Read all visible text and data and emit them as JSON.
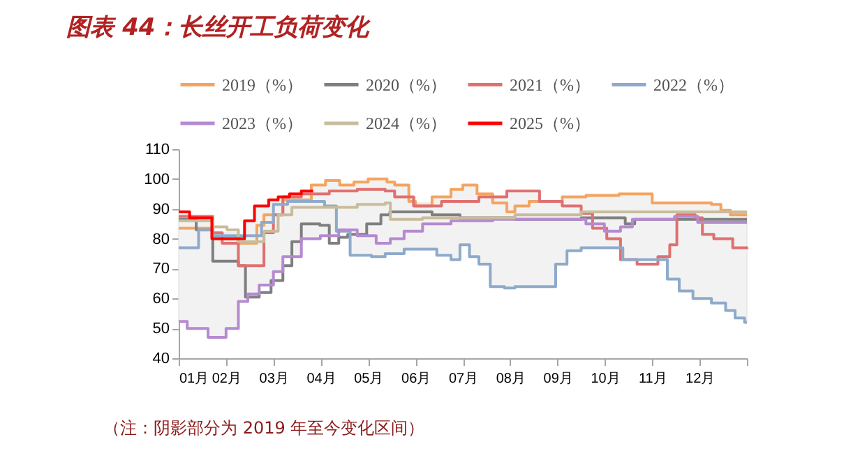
{
  "chart_data": {
    "type": "step",
    "title": "图表 44：长丝开工负荷变化",
    "annotations": [
      "（注：阴影部分为 2019 年至今变化区间）"
    ],
    "xlim": [
      1,
      13
    ],
    "xticks": [
      {
        "value": 1,
        "label": "01月"
      },
      {
        "value": 2,
        "label": "02月"
      },
      {
        "value": 3,
        "label": "03月"
      },
      {
        "value": 4,
        "label": "04月"
      },
      {
        "value": 5,
        "label": "05月"
      },
      {
        "value": 6,
        "label": "06月"
      },
      {
        "value": 7,
        "label": "07月"
      },
      {
        "value": 8,
        "label": "08月"
      },
      {
        "value": 9,
        "label": "09月"
      },
      {
        "value": 10,
        "label": "10月"
      },
      {
        "value": 11,
        "label": "11月"
      },
      {
        "value": 12,
        "label": "12月"
      },
      {
        "value": 13,
        "label": null
      }
    ],
    "ylim": [
      40,
      110
    ],
    "yticks": [
      40,
      50,
      60,
      70,
      80,
      90,
      100,
      110
    ],
    "grid": false,
    "legend": "top",
    "series": [
      {
        "type": "area",
        "color": "#f2f2f2",
        "x": [
          1,
          1.18,
          1.23,
          1.62,
          1.72,
          2.0,
          2.26,
          2.39,
          2.46,
          2.6,
          2.7,
          2.9,
          3.0,
          3.1,
          3.2,
          3.34,
          3.59,
          3.8,
          3.99,
          4.1,
          4.33,
          4.4,
          4.62,
          4.7,
          5.0,
          5.07,
          5.36,
          5.4,
          5.56,
          5.76,
          5.86,
          6.0,
          6.35,
          6.45,
          6.75,
          6.94,
          7.0,
          7.14,
          7.3,
          7.34,
          7.58,
          7.63,
          7.88,
          7.93,
          8.1,
          8.62,
          8.96,
          9.1,
          9.2,
          9.5,
          9.6,
          10.3,
          10.38,
          11.0,
          11.32,
          11.57,
          11.86,
          12.25,
          12.45,
          12.55,
          12.65,
          12.75,
          12.95,
          13
        ],
        "lower": [
          52.3,
          50,
          50,
          47,
          47,
          50,
          59,
          59,
          61.5,
          61.5,
          64.5,
          64.5,
          69,
          69,
          74,
          74,
          80,
          80,
          81,
          81,
          82.5,
          82.5,
          74.5,
          74.5,
          74.5,
          74,
          75,
          75,
          75,
          76.5,
          76.5,
          76.5,
          76.5,
          74.5,
          73,
          78,
          78,
          74,
          74,
          71.5,
          64,
          64,
          63.5,
          63.5,
          64,
          64,
          71.5,
          71.5,
          76,
          77,
          77,
          77,
          73,
          73,
          66.5,
          62.5,
          60,
          58.5,
          58.5,
          56,
          56,
          53.5,
          52,
          52
        ],
        "values": [
          null,
          null,
          null,
          null,
          null,
          null,
          null,
          null,
          null,
          null,
          null,
          null,
          null,
          null,
          null,
          null,
          null,
          null,
          null,
          null,
          null,
          null,
          null,
          null,
          null,
          null,
          null,
          null,
          null,
          null,
          null,
          null,
          null,
          null,
          null,
          null,
          null,
          null,
          null,
          null,
          null,
          null,
          null,
          null,
          null,
          null,
          null,
          null,
          null,
          null,
          null,
          null,
          null,
          null,
          null,
          null,
          null,
          null,
          null,
          null,
          null,
          null,
          null,
          null
        ],
        "upper": [
          89,
          89,
          87.5,
          87.5,
          82,
          82,
          81,
          86,
          86,
          91,
          91,
          93,
          93,
          94,
          94,
          95,
          96,
          98,
          98,
          99.5,
          99.5,
          98,
          98,
          99,
          100,
          100,
          99,
          99,
          98,
          98,
          94,
          92,
          94,
          94,
          96.5,
          96.5,
          98,
          98,
          95,
          95,
          95,
          94,
          94,
          96,
          96,
          92.5,
          92.5,
          94,
          94,
          94,
          95,
          95,
          95,
          92,
          92,
          92,
          92,
          91.5,
          89.5,
          89.5,
          89,
          89,
          89,
          89
        ]
      },
      {
        "name": "2019（%）",
        "color": "#f4a460",
        "x": [
          1,
          1.72,
          2.25,
          2.65,
          2.8,
          3.2,
          3.8,
          4.1,
          4.4,
          4.7,
          5.0,
          5.4,
          5.56,
          5.86,
          6.0,
          6.35,
          6.75,
          7.0,
          7.3,
          7.63,
          7.93,
          8.1,
          8.4,
          9.1,
          9.6,
          10.3,
          11.0,
          12.25,
          12.45,
          12.65,
          13
        ],
        "values": [
          83.5,
          80,
          78.5,
          84.5,
          88,
          93,
          98,
          99.5,
          98,
          99,
          100,
          99,
          98,
          92.5,
          91,
          94,
          96.5,
          98,
          95,
          92,
          89,
          91,
          92.5,
          94,
          94.5,
          95,
          92,
          91.5,
          89.5,
          88,
          88
        ]
      },
      {
        "name": "2020（%）",
        "color": "#7f7f7f",
        "x": [
          1,
          1.37,
          1.72,
          2.26,
          2.41,
          2.7,
          2.95,
          3.2,
          3.39,
          3.59,
          3.98,
          4.18,
          4.38,
          4.57,
          4.97,
          5.27,
          5.46,
          5.76,
          6.35,
          6.94,
          8.1,
          9.5,
          10.43,
          10.63,
          13
        ],
        "values": [
          86.5,
          83,
          72.5,
          71,
          60.5,
          62,
          66,
          71,
          79,
          85,
          84.5,
          78.5,
          80.5,
          81.5,
          85,
          88,
          89,
          89,
          88,
          87,
          86.5,
          87,
          85,
          86.5,
          86.5
        ]
      },
      {
        "name": "2021（%）",
        "color": "#e07070",
        "x": [
          1,
          1.72,
          1.92,
          2.26,
          2.8,
          3.0,
          3.2,
          3.59,
          4.18,
          4.77,
          5.36,
          5.56,
          5.96,
          6.55,
          7.34,
          7.93,
          8.62,
          9.1,
          9.5,
          9.74,
          10.04,
          10.33,
          10.68,
          11.12,
          11.37,
          11.52,
          11.91,
          12.06,
          12.3,
          12.7,
          13
        ],
        "values": [
          87.5,
          82,
          78.5,
          71,
          82,
          88,
          94,
          95,
          96,
          96.5,
          96,
          94,
          91,
          92.5,
          94,
          96,
          92.5,
          91,
          88.5,
          83.5,
          80,
          73,
          71.5,
          74,
          78,
          88,
          87,
          81.5,
          80,
          77,
          76.5
        ]
      },
      {
        "name": "2022（%）",
        "color": "#8eaacb",
        "x": [
          1,
          1.42,
          1.72,
          2.75,
          3.0,
          3.3,
          4.08,
          4.33,
          4.62,
          5.07,
          5.36,
          5.76,
          6.45,
          6.75,
          6.94,
          7.14,
          7.34,
          7.58,
          7.88,
          8.1,
          8.96,
          9.2,
          9.5,
          10.38,
          11.32,
          11.57,
          11.86,
          12.25,
          12.55,
          12.75,
          12.95,
          13
        ],
        "values": [
          77,
          83,
          81,
          85.5,
          91.5,
          92.5,
          91,
          82.5,
          74.5,
          74,
          75,
          76.5,
          74.5,
          73,
          78,
          74,
          71.5,
          64,
          63.5,
          64,
          71.5,
          76,
          77,
          73,
          66.5,
          62.5,
          60,
          58.5,
          56,
          53.5,
          52,
          52
        ]
      },
      {
        "name": "2023（%）",
        "color": "#b58ad0",
        "x": [
          1,
          1.18,
          1.62,
          2.0,
          2.26,
          2.46,
          2.7,
          3.0,
          3.2,
          3.59,
          3.99,
          4.38,
          4.77,
          5.17,
          5.47,
          5.76,
          6.15,
          6.75,
          7.63,
          9.5,
          9.6,
          9.99,
          10.33,
          10.58,
          11.47,
          11.96,
          13
        ],
        "values": [
          52.3,
          50,
          47,
          50,
          59,
          61.5,
          64.5,
          69,
          74,
          80,
          81,
          83,
          81,
          78.5,
          80,
          82.5,
          85,
          86,
          86.5,
          86.5,
          85,
          82.5,
          84,
          86.5,
          87.5,
          85.5,
          85.5
        ]
      },
      {
        "name": "2024（%）",
        "color": "#c8bc9c",
        "x": [
          1,
          1.72,
          2.02,
          2.26,
          2.8,
          3.1,
          3.39,
          4.57,
          4.77,
          5.36,
          5.47,
          6.15,
          8.1,
          9.5,
          13
        ],
        "values": [
          86,
          84,
          83,
          79,
          82.5,
          88,
          90.5,
          90.5,
          91.5,
          92,
          86.5,
          87,
          88,
          89,
          89
        ]
      },
      {
        "name": "2025（%）",
        "color": "#ff0000",
        "x": [
          1,
          1.23,
          1.7,
          2.39,
          2.6,
          2.9,
          3.1,
          3.34,
          3.59,
          3.84
        ],
        "values": [
          89,
          87,
          80,
          86,
          91,
          93,
          94,
          95,
          96,
          96
        ]
      }
    ]
  }
}
